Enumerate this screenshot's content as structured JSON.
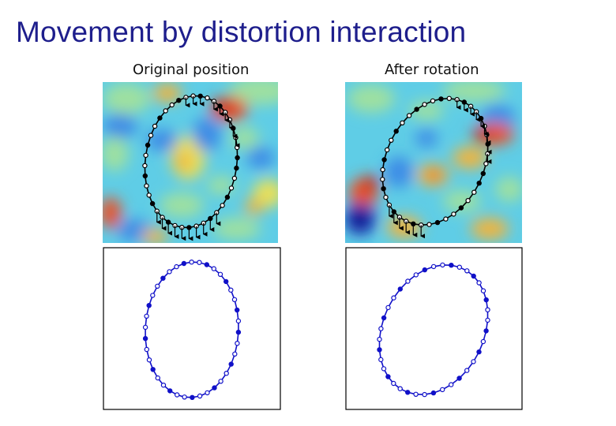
{
  "title": "Movement by distortion interaction",
  "panels": [
    {
      "caption": "Original position",
      "field_rotation_deg": 0,
      "arrow_side": "right-bottom"
    },
    {
      "caption": "After rotation",
      "field_rotation_deg": 90,
      "arrow_side": "right-bottom"
    }
  ],
  "colors": {
    "title": "#1e1e8c",
    "bead_outline_top": "#000000",
    "bead_outline_bottom": "#1010c8",
    "field_palette": [
      "#1a2fb5",
      "#3c8ce6",
      "#5fcde6",
      "#9ee0a0",
      "#e8e05a",
      "#f0b43c",
      "#e8522a",
      "#c82a1a"
    ]
  },
  "icons": {
    "bead": "open-circle-icon",
    "force": "arrow-down-icon"
  }
}
